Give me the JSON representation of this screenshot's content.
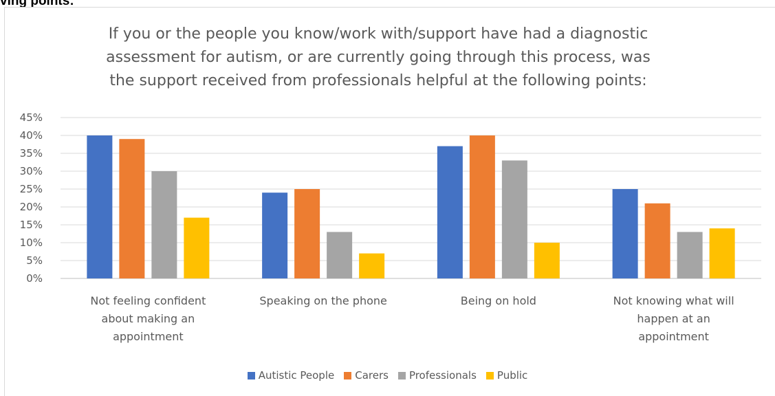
{
  "page": {
    "heading": "ving points:"
  },
  "chart_data": {
    "type": "bar",
    "title_lines": [
      "If you or the people you know/work with/support have had a diagnostic",
      "assessment for autism, or are currently going through this process, was",
      "the support received from professionals helpful at the following points:"
    ],
    "categories": [
      [
        "Not feeling confident",
        "about making an",
        "appointment"
      ],
      [
        "Speaking on the phone"
      ],
      [
        "Being on hold"
      ],
      [
        "Not knowing what will",
        "happen at an",
        "appointment"
      ]
    ],
    "series": [
      {
        "name": "Autistic People",
        "color": "#4472C4",
        "values": [
          40,
          24,
          37,
          25
        ]
      },
      {
        "name": "Carers",
        "color": "#ED7D31",
        "values": [
          39,
          25,
          40,
          21
        ]
      },
      {
        "name": "Professionals",
        "color": "#A5A5A5",
        "values": [
          30,
          13,
          33,
          13
        ]
      },
      {
        "name": "Public",
        "color": "#FFC000",
        "values": [
          17,
          7,
          10,
          14
        ]
      }
    ],
    "y_ticks": [
      "0%",
      "5%",
      "10%",
      "15%",
      "20%",
      "25%",
      "30%",
      "35%",
      "40%",
      "45%"
    ],
    "ylim": [
      0,
      45
    ],
    "grid": true,
    "legend_position": "bottom"
  }
}
